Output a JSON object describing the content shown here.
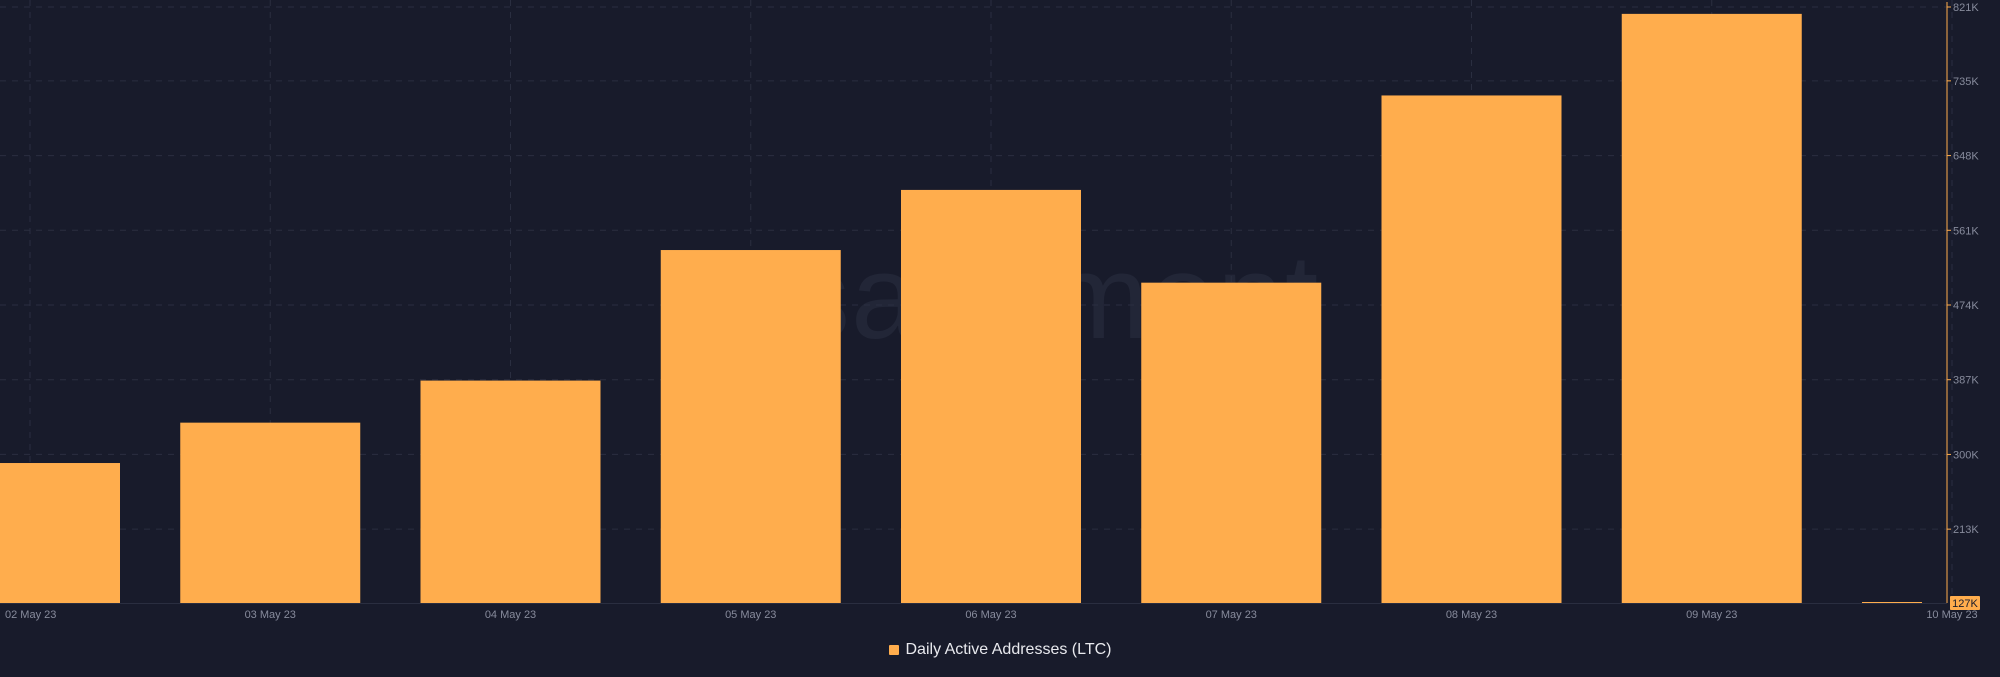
{
  "watermark": "santiment",
  "legend": {
    "label": "Daily Active Addresses (LTC)",
    "color": "#ffad4d"
  },
  "current_value_label": "127K",
  "chart_data": {
    "type": "bar",
    "title": "",
    "xlabel": "",
    "ylabel": "",
    "categories": [
      "02 May 23",
      "03 May 23",
      "04 May 23",
      "05 May 23",
      "06 May 23",
      "07 May 23",
      "08 May 23",
      "09 May 23",
      "10 May 23"
    ],
    "series": [
      {
        "name": "Daily Active Addresses (LTC)",
        "color": "#ffad4d",
        "values": [
          290000,
          337000,
          386000,
          538000,
          608000,
          500000,
          718000,
          813000,
          127500
        ]
      }
    ],
    "ylim": [
      127000,
      821000
    ],
    "y_ticks": [
      "821K",
      "735K",
      "648K",
      "561K",
      "474K",
      "387K",
      "300K",
      "213K"
    ],
    "y_tick_values": [
      821000,
      735000,
      648000,
      561000,
      474000,
      387000,
      300000,
      213000
    ],
    "grid": true,
    "legend_position": "bottom-center",
    "axis_position": "right",
    "colors": {
      "background": "#181b2b",
      "grid": "#2a2e40",
      "axis_line": "#ffad4d",
      "tick_text": "#878b9c"
    }
  }
}
